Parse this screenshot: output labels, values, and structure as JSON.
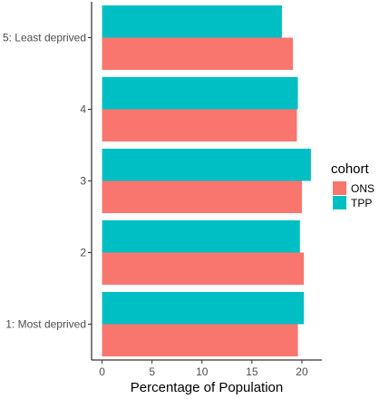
{
  "chart_data": {
    "type": "bar",
    "orientation": "horizontal",
    "categories": [
      "1: Most deprived",
      "2",
      "3",
      "4",
      "5: Least deprived"
    ],
    "series": [
      {
        "name": "ONS",
        "values": [
          19.6,
          20.2,
          20.0,
          19.5,
          19.1
        ],
        "color": "#F8766D"
      },
      {
        "name": "TPP",
        "values": [
          20.2,
          19.8,
          20.9,
          19.6,
          18.0
        ],
        "color": "#00BFC4"
      }
    ],
    "title": "",
    "xlabel": "Percentage of Population",
    "ylabel": "",
    "xlim": [
      -1.05,
      22.0
    ],
    "xticks": [
      0,
      5,
      10,
      15,
      20
    ],
    "grid": false,
    "legend": {
      "title": "cohort",
      "position": "right"
    }
  }
}
